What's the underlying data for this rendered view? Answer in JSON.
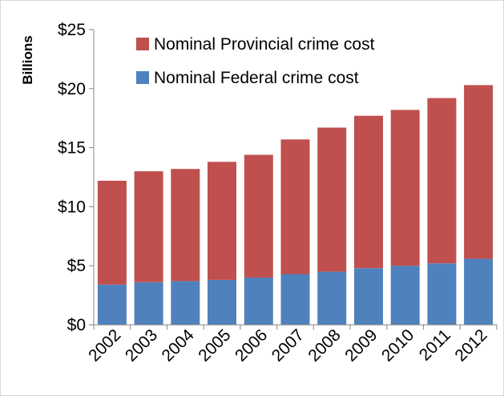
{
  "chart_data": {
    "type": "bar",
    "stacked": true,
    "categories": [
      "2002",
      "2003",
      "2004",
      "2005",
      "2006",
      "2007",
      "2008",
      "2009",
      "2010",
      "2011",
      "2012"
    ],
    "series": [
      {
        "name": "Nominal Federal crime cost",
        "color": "#4f81bd",
        "values": [
          3.4,
          3.6,
          3.7,
          3.8,
          4.0,
          4.3,
          4.5,
          4.8,
          5.0,
          5.2,
          5.6
        ]
      },
      {
        "name": "Nominal Provincial crime cost",
        "color": "#c0504d",
        "values": [
          8.8,
          9.4,
          9.5,
          10.0,
          10.4,
          11.4,
          12.2,
          12.9,
          13.2,
          14.0,
          14.7
        ]
      }
    ],
    "ylabel": "Billions",
    "ylim": [
      0,
      25
    ],
    "yticks": [
      0,
      5,
      10,
      15,
      20,
      25
    ],
    "ytick_labels": [
      "$0",
      "$5",
      "$10",
      "$15",
      "$20",
      "$25"
    ],
    "legend_position": "top",
    "grid": false
  }
}
